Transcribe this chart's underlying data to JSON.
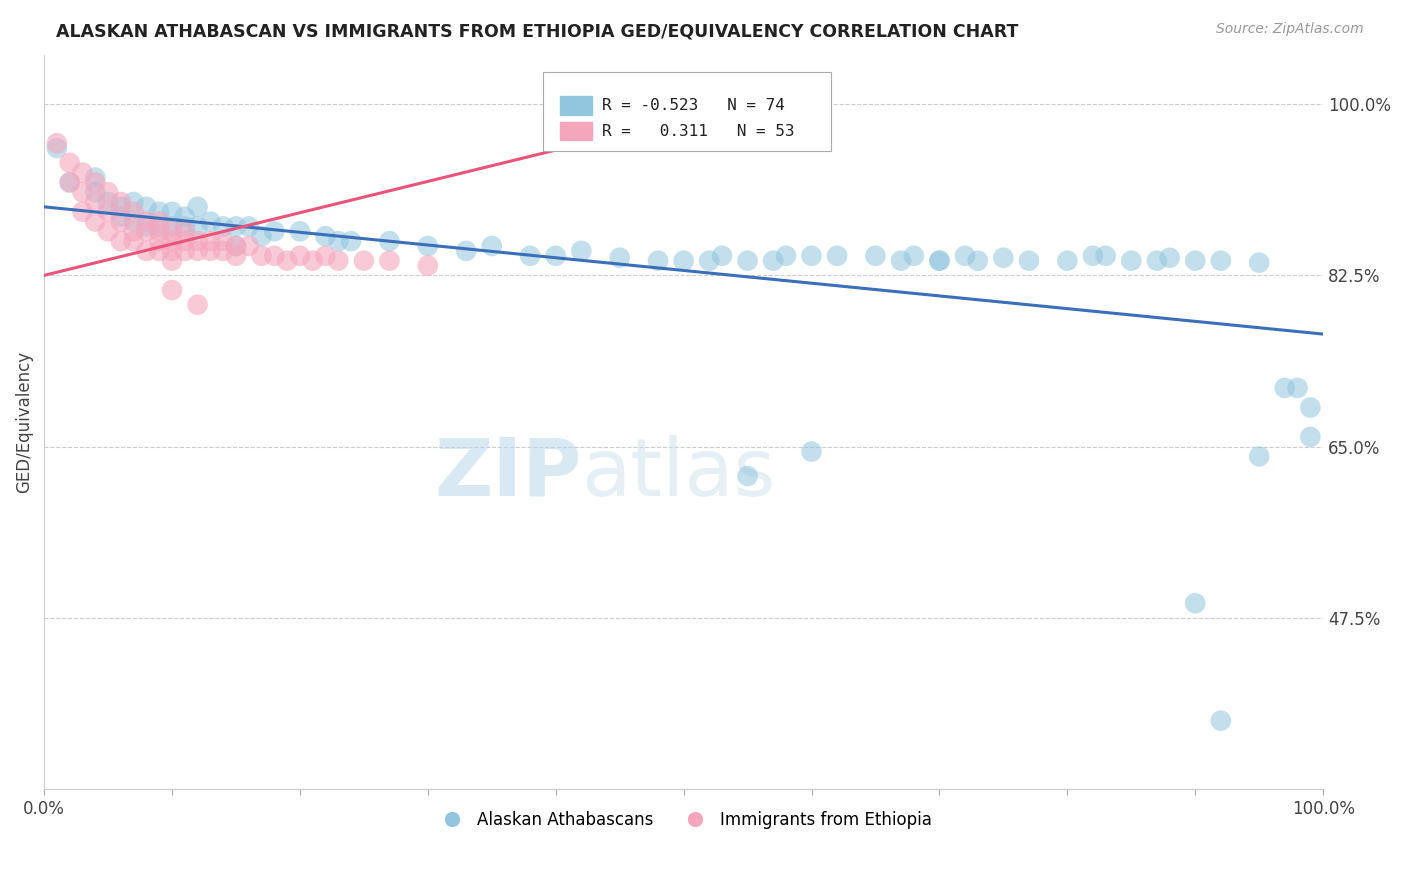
{
  "title": "ALASKAN ATHABASCAN VS IMMIGRANTS FROM ETHIOPIA GED/EQUIVALENCY CORRELATION CHART",
  "source": "Source: ZipAtlas.com",
  "ylabel": "GED/Equivalency",
  "ytick_labels": [
    "100.0%",
    "82.5%",
    "65.0%",
    "47.5%"
  ],
  "ytick_values": [
    1.0,
    0.825,
    0.65,
    0.475
  ],
  "xlim": [
    0.0,
    1.0
  ],
  "ylim": [
    0.3,
    1.05
  ],
  "legend_r_blue": "-0.523",
  "legend_n_blue": "74",
  "legend_r_pink": "0.311",
  "legend_n_pink": "53",
  "blue_color": "#92c5de",
  "pink_color": "#f4a6bd",
  "blue_line_color": "#3b6fba",
  "pink_line_color": "#e8547a",
  "watermark_zip": "ZIP",
  "watermark_atlas": "atlas",
  "blue_scatter": [
    [
      0.01,
      0.955
    ],
    [
      0.02,
      0.92
    ],
    [
      0.04,
      0.925
    ],
    [
      0.04,
      0.91
    ],
    [
      0.05,
      0.9
    ],
    [
      0.06,
      0.895
    ],
    [
      0.06,
      0.885
    ],
    [
      0.07,
      0.9
    ],
    [
      0.07,
      0.88
    ],
    [
      0.08,
      0.895
    ],
    [
      0.08,
      0.875
    ],
    [
      0.09,
      0.89
    ],
    [
      0.09,
      0.875
    ],
    [
      0.1,
      0.89
    ],
    [
      0.1,
      0.875
    ],
    [
      0.11,
      0.885
    ],
    [
      0.11,
      0.875
    ],
    [
      0.12,
      0.895
    ],
    [
      0.12,
      0.875
    ],
    [
      0.13,
      0.88
    ],
    [
      0.14,
      0.875
    ],
    [
      0.15,
      0.875
    ],
    [
      0.15,
      0.855
    ],
    [
      0.16,
      0.875
    ],
    [
      0.17,
      0.865
    ],
    [
      0.18,
      0.87
    ],
    [
      0.2,
      0.87
    ],
    [
      0.22,
      0.865
    ],
    [
      0.23,
      0.86
    ],
    [
      0.24,
      0.86
    ],
    [
      0.27,
      0.86
    ],
    [
      0.3,
      0.855
    ],
    [
      0.33,
      0.85
    ],
    [
      0.35,
      0.855
    ],
    [
      0.38,
      0.845
    ],
    [
      0.4,
      0.845
    ],
    [
      0.42,
      0.85
    ],
    [
      0.45,
      0.843
    ],
    [
      0.48,
      0.84
    ],
    [
      0.5,
      0.84
    ],
    [
      0.52,
      0.84
    ],
    [
      0.53,
      0.845
    ],
    [
      0.55,
      0.84
    ],
    [
      0.57,
      0.84
    ],
    [
      0.58,
      0.845
    ],
    [
      0.6,
      0.845
    ],
    [
      0.62,
      0.845
    ],
    [
      0.65,
      0.845
    ],
    [
      0.67,
      0.84
    ],
    [
      0.68,
      0.845
    ],
    [
      0.7,
      0.84
    ],
    [
      0.7,
      0.84
    ],
    [
      0.72,
      0.845
    ],
    [
      0.73,
      0.84
    ],
    [
      0.75,
      0.843
    ],
    [
      0.77,
      0.84
    ],
    [
      0.8,
      0.84
    ],
    [
      0.82,
      0.845
    ],
    [
      0.83,
      0.845
    ],
    [
      0.85,
      0.84
    ],
    [
      0.87,
      0.84
    ],
    [
      0.88,
      0.843
    ],
    [
      0.9,
      0.84
    ],
    [
      0.92,
      0.84
    ],
    [
      0.95,
      0.838
    ],
    [
      0.97,
      0.71
    ],
    [
      0.98,
      0.71
    ],
    [
      0.99,
      0.69
    ],
    [
      0.95,
      0.64
    ],
    [
      0.99,
      0.66
    ],
    [
      0.6,
      0.645
    ],
    [
      0.55,
      0.62
    ],
    [
      0.9,
      0.49
    ],
    [
      0.92,
      0.37
    ]
  ],
  "pink_scatter": [
    [
      0.01,
      0.96
    ],
    [
      0.02,
      0.94
    ],
    [
      0.02,
      0.92
    ],
    [
      0.03,
      0.93
    ],
    [
      0.03,
      0.91
    ],
    [
      0.03,
      0.89
    ],
    [
      0.04,
      0.92
    ],
    [
      0.04,
      0.9
    ],
    [
      0.04,
      0.88
    ],
    [
      0.05,
      0.91
    ],
    [
      0.05,
      0.89
    ],
    [
      0.05,
      0.87
    ],
    [
      0.06,
      0.9
    ],
    [
      0.06,
      0.88
    ],
    [
      0.06,
      0.86
    ],
    [
      0.07,
      0.89
    ],
    [
      0.07,
      0.87
    ],
    [
      0.07,
      0.86
    ],
    [
      0.08,
      0.88
    ],
    [
      0.08,
      0.87
    ],
    [
      0.08,
      0.85
    ],
    [
      0.09,
      0.88
    ],
    [
      0.09,
      0.87
    ],
    [
      0.09,
      0.86
    ],
    [
      0.09,
      0.85
    ],
    [
      0.1,
      0.87
    ],
    [
      0.1,
      0.86
    ],
    [
      0.1,
      0.85
    ],
    [
      0.1,
      0.84
    ],
    [
      0.11,
      0.87
    ],
    [
      0.11,
      0.86
    ],
    [
      0.11,
      0.85
    ],
    [
      0.12,
      0.86
    ],
    [
      0.12,
      0.85
    ],
    [
      0.13,
      0.86
    ],
    [
      0.13,
      0.85
    ],
    [
      0.14,
      0.86
    ],
    [
      0.14,
      0.85
    ],
    [
      0.15,
      0.855
    ],
    [
      0.15,
      0.845
    ],
    [
      0.16,
      0.855
    ],
    [
      0.17,
      0.845
    ],
    [
      0.18,
      0.845
    ],
    [
      0.19,
      0.84
    ],
    [
      0.2,
      0.845
    ],
    [
      0.21,
      0.84
    ],
    [
      0.22,
      0.845
    ],
    [
      0.23,
      0.84
    ],
    [
      0.25,
      0.84
    ],
    [
      0.27,
      0.84
    ],
    [
      0.3,
      0.835
    ],
    [
      0.1,
      0.81
    ],
    [
      0.12,
      0.795
    ]
  ],
  "blue_line": [
    [
      0.0,
      0.895
    ],
    [
      1.0,
      0.765
    ]
  ],
  "pink_line": [
    [
      0.0,
      0.825
    ],
    [
      0.5,
      0.985
    ]
  ]
}
